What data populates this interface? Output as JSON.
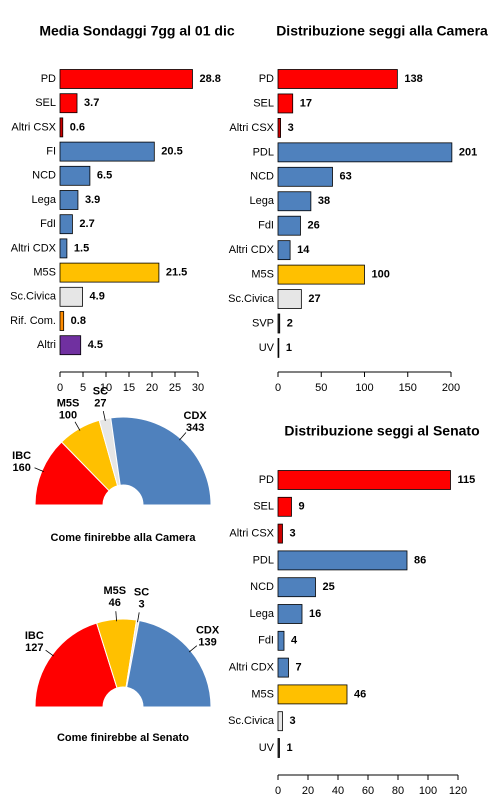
{
  "chart_data": [
    {
      "type": "bar",
      "orientation": "horizontal",
      "title": "Media Sondaggi 7gg al 01 dic",
      "categories": [
        "PD",
        "SEL",
        "Altri CSX",
        "FI",
        "NCD",
        "Lega",
        "FdI",
        "Altri CDX",
        "M5S",
        "Sc.Civica",
        "Rif. Com.",
        "Altri"
      ],
      "values": [
        28.8,
        3.7,
        0.6,
        20.5,
        6.5,
        3.9,
        2.7,
        1.5,
        21.5,
        4.9,
        0.8,
        4.5
      ],
      "colors": [
        "#ff0000",
        "#ff0000",
        "#cc0000",
        "#4f81bd",
        "#4f81bd",
        "#4f81bd",
        "#4f81bd",
        "#4f81bd",
        "#ffc000",
        "#e6e6e6",
        "#ff8c00",
        "#7030a0"
      ],
      "xlim": [
        0,
        30
      ],
      "xticks": [
        0,
        5,
        10,
        15,
        20,
        25,
        30
      ]
    },
    {
      "type": "bar",
      "orientation": "horizontal",
      "title": "Distribuzione seggi alla Camera",
      "categories": [
        "PD",
        "SEL",
        "Altri CSX",
        "PDL",
        "NCD",
        "Lega",
        "FdI",
        "Altri CDX",
        "M5S",
        "Sc.Civica",
        "SVP",
        "UV"
      ],
      "values": [
        138,
        17,
        3,
        201,
        63,
        38,
        26,
        14,
        100,
        27,
        2,
        1
      ],
      "colors": [
        "#ff0000",
        "#ff0000",
        "#cc0000",
        "#4f81bd",
        "#4f81bd",
        "#4f81bd",
        "#4f81bd",
        "#4f81bd",
        "#ffc000",
        "#e6e6e6",
        "#333333",
        "#333333"
      ],
      "xlim": [
        0,
        200
      ],
      "xticks": [
        0,
        50,
        100,
        150,
        200
      ]
    },
    {
      "type": "bar",
      "orientation": "horizontal",
      "title": "Distribuzione seggi al Senato",
      "categories": [
        "PD",
        "SEL",
        "Altri CSX",
        "PDL",
        "NCD",
        "Lega",
        "FdI",
        "Altri CDX",
        "M5S",
        "Sc.Civica",
        "UV"
      ],
      "values": [
        115,
        9,
        3,
        86,
        25,
        16,
        4,
        7,
        46,
        3,
        1
      ],
      "colors": [
        "#ff0000",
        "#ff0000",
        "#cc0000",
        "#4f81bd",
        "#4f81bd",
        "#4f81bd",
        "#4f81bd",
        "#4f81bd",
        "#ffc000",
        "#e6e6e6",
        "#333333"
      ],
      "xlim": [
        0,
        120
      ],
      "xticks": [
        0,
        20,
        40,
        60,
        80,
        100,
        120
      ]
    },
    {
      "type": "pie",
      "title": "Come finirebbe alla Camera",
      "categories": [
        "IBC",
        "M5S",
        "SC",
        "CDX"
      ],
      "values": [
        160,
        100,
        27,
        343
      ],
      "colors": [
        "#ff0000",
        "#ffc000",
        "#e6e6e6",
        "#4f81bd"
      ]
    },
    {
      "type": "pie",
      "title": "Come finirebbe al Senato",
      "categories": [
        "IBC",
        "M5S",
        "SC",
        "CDX"
      ],
      "values": [
        127,
        46,
        3,
        139
      ],
      "colors": [
        "#ff0000",
        "#ffc000",
        "#e6e6e6",
        "#4f81bd"
      ]
    }
  ]
}
